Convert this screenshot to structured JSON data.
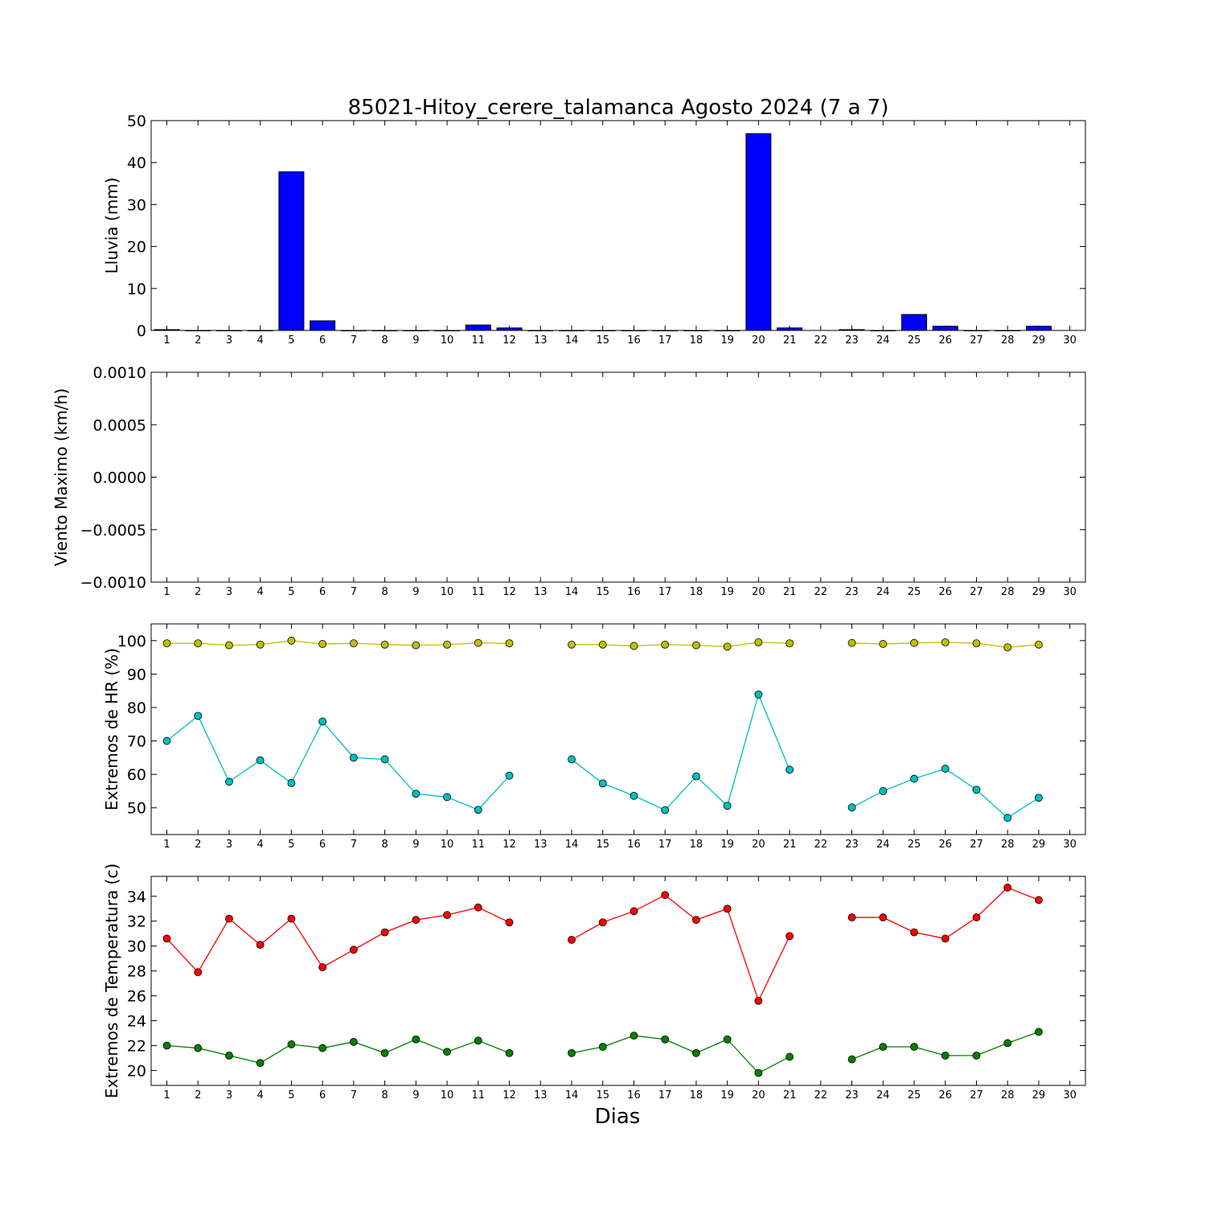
{
  "title": "85021-Hitoy_cerere_talamanca Agosto 2024  (7 a 7)",
  "xlabel": "Dias",
  "colors": {
    "bar": "#0000ff",
    "hr_max": "#bfbf00",
    "hr_min": "#00bfbf",
    "t_max": "#ff0000",
    "t_min": "#008000"
  },
  "chart_data": [
    {
      "type": "bar",
      "ylabel": "Lluvia (mm)",
      "ylim": [
        0,
        50
      ],
      "yticks": [
        "0",
        "10",
        "20",
        "30",
        "40",
        "50"
      ],
      "categories": [
        1,
        2,
        3,
        4,
        5,
        6,
        7,
        8,
        9,
        10,
        11,
        12,
        13,
        14,
        15,
        16,
        17,
        18,
        19,
        20,
        21,
        22,
        23,
        24,
        25,
        26,
        27,
        28,
        29,
        30
      ],
      "values": [
        0.2,
        0.0,
        0.0,
        0.0,
        37.8,
        2.3,
        0.0,
        0.0,
        0.0,
        0.0,
        1.3,
        0.6,
        0.0,
        0.0,
        0.0,
        0.0,
        0.0,
        0.0,
        0.0,
        46.9,
        0.6,
        null,
        0.2,
        0.0,
        3.8,
        1.0,
        0.0,
        0.0,
        1.0,
        null
      ]
    },
    {
      "type": "line",
      "ylabel": "Viento Maximo (km/h)",
      "ylim": [
        -0.001,
        0.001
      ],
      "yticks": [
        "−0.0010",
        "−0.0005",
        "0.0000",
        "0.0005",
        "0.0010"
      ],
      "x": [
        1,
        2,
        3,
        4,
        5,
        6,
        7,
        8,
        9,
        10,
        11,
        12,
        13,
        14,
        15,
        16,
        17,
        18,
        19,
        20,
        21,
        22,
        23,
        24,
        25,
        26,
        27,
        28,
        29,
        30
      ],
      "series": []
    },
    {
      "type": "line",
      "ylabel": "Extremos de HR (%)",
      "ylim": [
        42,
        105
      ],
      "yticks": [
        "50",
        "60",
        "70",
        "80",
        "90",
        "100"
      ],
      "x": [
        1,
        2,
        3,
        4,
        5,
        6,
        7,
        8,
        9,
        10,
        11,
        12,
        13,
        14,
        15,
        16,
        17,
        18,
        19,
        20,
        21,
        22,
        23,
        24,
        25,
        26,
        27,
        28,
        29,
        30
      ],
      "series": [
        {
          "key": "hr_max",
          "values": [
            99.2,
            99.2,
            98.6,
            98.8,
            100.0,
            99.0,
            99.2,
            98.8,
            98.6,
            98.8,
            99.3,
            99.2,
            null,
            98.8,
            98.8,
            98.4,
            98.8,
            98.6,
            98.2,
            99.5,
            99.2,
            null,
            99.3,
            99.0,
            99.3,
            99.5,
            99.2,
            98.0,
            98.8,
            null
          ]
        },
        {
          "key": "hr_min",
          "values": [
            70.0,
            77.5,
            57.8,
            64.2,
            57.4,
            75.8,
            65.0,
            64.5,
            54.2,
            53.2,
            49.4,
            59.6,
            null,
            64.5,
            57.3,
            53.6,
            49.3,
            59.4,
            50.6,
            83.9,
            61.4,
            null,
            50.1,
            55.0,
            58.7,
            61.7,
            55.4,
            47.0,
            53.0,
            null
          ]
        }
      ]
    },
    {
      "type": "line",
      "ylabel": "Extremos de Temperatura (c)",
      "ylim": [
        18.8,
        35.6
      ],
      "yticks": [
        "20",
        "22",
        "24",
        "26",
        "28",
        "30",
        "32",
        "34"
      ],
      "x": [
        1,
        2,
        3,
        4,
        5,
        6,
        7,
        8,
        9,
        10,
        11,
        12,
        13,
        14,
        15,
        16,
        17,
        18,
        19,
        20,
        21,
        22,
        23,
        24,
        25,
        26,
        27,
        28,
        29,
        30
      ],
      "series": [
        {
          "key": "t_max",
          "values": [
            30.6,
            27.9,
            32.2,
            30.1,
            32.2,
            28.3,
            29.7,
            31.1,
            32.1,
            32.5,
            33.1,
            31.9,
            null,
            30.5,
            31.9,
            32.8,
            34.1,
            32.1,
            33.0,
            25.6,
            30.8,
            null,
            32.3,
            32.3,
            31.1,
            30.6,
            32.3,
            34.7,
            33.7,
            null
          ]
        },
        {
          "key": "t_min",
          "values": [
            22.0,
            21.8,
            21.2,
            20.6,
            22.1,
            21.8,
            22.3,
            21.4,
            22.5,
            21.5,
            22.4,
            21.4,
            null,
            21.4,
            21.9,
            22.8,
            22.5,
            21.4,
            22.5,
            19.8,
            21.1,
            null,
            20.9,
            21.9,
            21.9,
            21.2,
            21.2,
            22.2,
            23.1,
            null
          ]
        }
      ]
    }
  ]
}
